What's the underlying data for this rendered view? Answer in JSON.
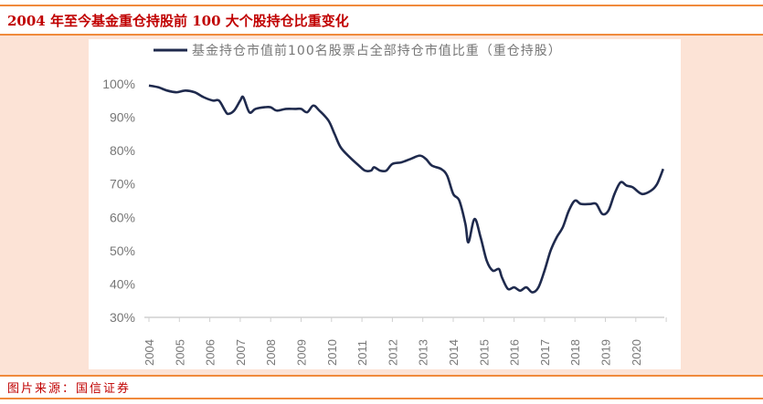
{
  "title": "2004 年至今基金重仓持股前 100 大个股持仓比重变化",
  "footer": "图片来源：国信证券",
  "colors": {
    "line": "#1f2a4d",
    "accent": "#c00000",
    "rule": "#f08a3c",
    "panel": "#fce3d6"
  },
  "chart_data": {
    "type": "line",
    "title": "",
    "legend_position": "top",
    "grid": false,
    "ylim": [
      30,
      100
    ],
    "yticks": [
      "30%",
      "40%",
      "50%",
      "60%",
      "70%",
      "80%",
      "90%",
      "100%"
    ],
    "xticks": [
      "2004",
      "2005",
      "2006",
      "2007",
      "2008",
      "2009",
      "2010",
      "2011",
      "2012",
      "2013",
      "2014",
      "2015",
      "2016",
      "2017",
      "2018",
      "2019",
      "2020"
    ],
    "series": [
      {
        "name": "基金持仓市值前100名股票占全部持仓市值比重（重仓持股）",
        "x": [
          2004.0,
          2004.3,
          2004.6,
          2004.9,
          2005.2,
          2005.5,
          2005.8,
          2006.1,
          2006.3,
          2006.5,
          2006.6,
          2006.8,
          2007.0,
          2007.1,
          2007.3,
          2007.5,
          2007.8,
          2008.0,
          2008.2,
          2008.5,
          2008.8,
          2009.0,
          2009.2,
          2009.4,
          2009.6,
          2009.9,
          2010.1,
          2010.3,
          2010.6,
          2010.9,
          2011.1,
          2011.3,
          2011.4,
          2011.6,
          2011.8,
          2012.0,
          2012.3,
          2012.6,
          2012.9,
          2013.1,
          2013.3,
          2013.6,
          2013.8,
          2014.0,
          2014.2,
          2014.4,
          2014.5,
          2014.7,
          2014.9,
          2015.1,
          2015.3,
          2015.5,
          2015.6,
          2015.8,
          2016.0,
          2016.2,
          2016.4,
          2016.6,
          2016.8,
          2017.0,
          2017.2,
          2017.4,
          2017.6,
          2017.8,
          2018.0,
          2018.2,
          2018.5,
          2018.7,
          2018.9,
          2019.1,
          2019.3,
          2019.5,
          2019.7,
          2019.9,
          2020.2,
          2020.5,
          2020.7,
          2020.9
        ],
        "values": [
          99.5,
          99,
          98,
          97.5,
          98,
          97.5,
          96,
          95,
          95,
          92,
          91,
          92,
          95,
          96,
          91.5,
          92.5,
          93,
          93,
          92,
          92.5,
          92.5,
          92.5,
          91.5,
          93.5,
          92,
          89,
          85,
          81,
          78,
          75.5,
          74,
          74,
          75,
          74,
          74,
          76,
          76.5,
          77.5,
          78.5,
          77.5,
          75.5,
          74.5,
          72.5,
          67,
          65,
          58,
          52.5,
          59.5,
          54,
          47,
          44,
          44.5,
          42,
          38.5,
          39,
          38,
          39,
          37.5,
          39,
          44,
          50,
          54,
          57,
          62,
          65,
          64,
          64,
          64,
          61,
          62,
          67,
          70.5,
          69.5,
          69,
          67,
          68,
          70,
          74.5
        ]
      }
    ]
  }
}
